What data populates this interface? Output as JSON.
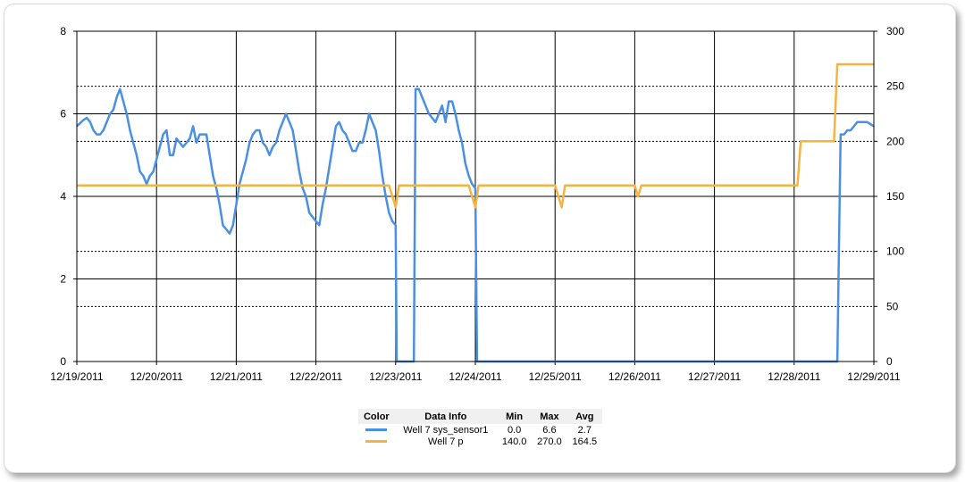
{
  "chart_data": {
    "type": "line",
    "title": "",
    "xlabel": "",
    "ylabel": "",
    "x_range": [
      "2011-12-19",
      "2011-12-29"
    ],
    "x_ticks": [
      "12/19/2011",
      "12/20/2011",
      "12/21/2011",
      "12/22/2011",
      "12/23/2011",
      "12/24/2011",
      "12/25/2011",
      "12/26/2011",
      "12/27/2011",
      "12/28/2011",
      "12/29/2011"
    ],
    "y_left": {
      "range": [
        0,
        8
      ],
      "ticks": [
        "0",
        "2",
        "4",
        "6",
        "8"
      ]
    },
    "y_right": {
      "range": [
        0,
        300
      ],
      "ticks": [
        "0",
        "50",
        "100",
        "150",
        "200",
        "250",
        "300"
      ]
    },
    "grid": true,
    "series": [
      {
        "name": "Well 7 sys_sensor1",
        "axis": "left",
        "color": "#4a90e2",
        "points": [
          [
            "2011-12-19 00:00",
            5.7
          ],
          [
            "2011-12-19 02:00",
            5.85
          ],
          [
            "2011-12-19 03:00",
            5.9
          ],
          [
            "2011-12-19 04:00",
            5.8
          ],
          [
            "2011-12-19 05:00",
            5.6
          ],
          [
            "2011-12-19 06:00",
            5.5
          ],
          [
            "2011-12-19 07:00",
            5.5
          ],
          [
            "2011-12-19 08:00",
            5.6
          ],
          [
            "2011-12-19 09:00",
            5.8
          ],
          [
            "2011-12-19 10:00",
            6.0
          ],
          [
            "2011-12-19 11:00",
            6.1
          ],
          [
            "2011-12-19 12:00",
            6.4
          ],
          [
            "2011-12-19 13:00",
            6.6
          ],
          [
            "2011-12-19 14:00",
            6.3
          ],
          [
            "2011-12-19 15:00",
            6.0
          ],
          [
            "2011-12-19 16:00",
            5.6
          ],
          [
            "2011-12-19 17:00",
            5.3
          ],
          [
            "2011-12-19 18:00",
            5.0
          ],
          [
            "2011-12-19 19:00",
            4.6
          ],
          [
            "2011-12-19 20:00",
            4.5
          ],
          [
            "2011-12-19 21:00",
            4.3
          ],
          [
            "2011-12-19 22:00",
            4.5
          ],
          [
            "2011-12-19 23:00",
            4.6
          ],
          [
            "2011-12-20 00:00",
            4.9
          ],
          [
            "2011-12-20 01:00",
            5.2
          ],
          [
            "2011-12-20 02:00",
            5.5
          ],
          [
            "2011-12-20 03:00",
            5.6
          ],
          [
            "2011-12-20 04:00",
            5.0
          ],
          [
            "2011-12-20 05:00",
            5.0
          ],
          [
            "2011-12-20 06:00",
            5.4
          ],
          [
            "2011-12-20 07:00",
            5.3
          ],
          [
            "2011-12-20 08:00",
            5.2
          ],
          [
            "2011-12-20 09:00",
            5.3
          ],
          [
            "2011-12-20 10:00",
            5.4
          ],
          [
            "2011-12-20 11:00",
            5.7
          ],
          [
            "2011-12-20 12:00",
            5.3
          ],
          [
            "2011-12-20 13:00",
            5.5
          ],
          [
            "2011-12-20 14:00",
            5.5
          ],
          [
            "2011-12-20 15:00",
            5.5
          ],
          [
            "2011-12-20 16:00",
            5.0
          ],
          [
            "2011-12-20 17:00",
            4.5
          ],
          [
            "2011-12-20 18:00",
            4.2
          ],
          [
            "2011-12-20 19:00",
            3.8
          ],
          [
            "2011-12-20 20:00",
            3.3
          ],
          [
            "2011-12-20 21:00",
            3.2
          ],
          [
            "2011-12-20 22:00",
            3.1
          ],
          [
            "2011-12-20 23:00",
            3.3
          ],
          [
            "2011-12-21 00:00",
            3.8
          ],
          [
            "2011-12-21 01:00",
            4.3
          ],
          [
            "2011-12-21 02:00",
            4.6
          ],
          [
            "2011-12-21 03:00",
            4.9
          ],
          [
            "2011-12-21 04:00",
            5.3
          ],
          [
            "2011-12-21 05:00",
            5.5
          ],
          [
            "2011-12-21 06:00",
            5.6
          ],
          [
            "2011-12-21 07:00",
            5.6
          ],
          [
            "2011-12-21 08:00",
            5.3
          ],
          [
            "2011-12-21 09:00",
            5.2
          ],
          [
            "2011-12-21 10:00",
            5.0
          ],
          [
            "2011-12-21 11:00",
            5.2
          ],
          [
            "2011-12-21 12:00",
            5.3
          ],
          [
            "2011-12-21 13:00",
            5.6
          ],
          [
            "2011-12-21 14:00",
            5.8
          ],
          [
            "2011-12-21 15:00",
            6.0
          ],
          [
            "2011-12-21 16:00",
            5.8
          ],
          [
            "2011-12-21 17:00",
            5.6
          ],
          [
            "2011-12-21 18:00",
            5.1
          ],
          [
            "2011-12-21 19:00",
            4.6
          ],
          [
            "2011-12-21 20:00",
            4.2
          ],
          [
            "2011-12-21 21:00",
            4.0
          ],
          [
            "2011-12-21 22:00",
            3.6
          ],
          [
            "2011-12-21 23:00",
            3.5
          ],
          [
            "2011-12-22 00:00",
            3.4
          ],
          [
            "2011-12-22 01:00",
            3.3
          ],
          [
            "2011-12-22 02:00",
            3.8
          ],
          [
            "2011-12-22 03:00",
            4.2
          ],
          [
            "2011-12-22 04:00",
            4.7
          ],
          [
            "2011-12-22 05:00",
            5.2
          ],
          [
            "2011-12-22 06:00",
            5.7
          ],
          [
            "2011-12-22 07:00",
            5.8
          ],
          [
            "2011-12-22 08:00",
            5.6
          ],
          [
            "2011-12-22 09:00",
            5.5
          ],
          [
            "2011-12-22 10:00",
            5.3
          ],
          [
            "2011-12-22 11:00",
            5.1
          ],
          [
            "2011-12-22 12:00",
            5.1
          ],
          [
            "2011-12-22 13:00",
            5.3
          ],
          [
            "2011-12-22 14:00",
            5.3
          ],
          [
            "2011-12-22 15:00",
            5.6
          ],
          [
            "2011-12-22 16:00",
            6.0
          ],
          [
            "2011-12-22 17:00",
            5.8
          ],
          [
            "2011-12-22 18:00",
            5.6
          ],
          [
            "2011-12-22 19:00",
            5.1
          ],
          [
            "2011-12-22 20:00",
            4.5
          ],
          [
            "2011-12-22 21:00",
            4.0
          ],
          [
            "2011-12-22 22:00",
            3.6
          ],
          [
            "2011-12-22 23:00",
            3.4
          ],
          [
            "2011-12-23 00:00",
            3.3
          ],
          [
            "2011-12-23 00:20",
            0.0
          ],
          [
            "2011-12-23 05:30",
            0.0
          ],
          [
            "2011-12-23 06:00",
            6.6
          ],
          [
            "2011-12-23 07:00",
            6.6
          ],
          [
            "2011-12-23 08:00",
            6.4
          ],
          [
            "2011-12-23 09:00",
            6.2
          ],
          [
            "2011-12-23 10:00",
            6.0
          ],
          [
            "2011-12-23 11:00",
            5.9
          ],
          [
            "2011-12-23 12:00",
            5.8
          ],
          [
            "2011-12-23 13:00",
            6.0
          ],
          [
            "2011-12-23 14:00",
            6.2
          ],
          [
            "2011-12-23 15:00",
            5.8
          ],
          [
            "2011-12-23 16:00",
            6.3
          ],
          [
            "2011-12-23 17:00",
            6.3
          ],
          [
            "2011-12-23 18:00",
            6.0
          ],
          [
            "2011-12-23 19:00",
            5.6
          ],
          [
            "2011-12-23 20:00",
            5.3
          ],
          [
            "2011-12-23 21:00",
            4.8
          ],
          [
            "2011-12-23 22:00",
            4.5
          ],
          [
            "2011-12-23 23:00",
            4.3
          ],
          [
            "2011-12-24 00:00",
            4.2
          ],
          [
            "2011-12-24 00:30",
            0.0
          ],
          [
            "2011-12-28 12:00",
            0.0
          ],
          [
            "2011-12-28 13:00",
            0.0
          ],
          [
            "2011-12-28 14:00",
            5.5
          ],
          [
            "2011-12-28 15:00",
            5.5
          ],
          [
            "2011-12-28 16:00",
            5.6
          ],
          [
            "2011-12-28 17:00",
            5.6
          ],
          [
            "2011-12-28 18:00",
            5.7
          ],
          [
            "2011-12-28 19:00",
            5.8
          ],
          [
            "2011-12-28 20:00",
            5.8
          ],
          [
            "2011-12-28 21:00",
            5.8
          ],
          [
            "2011-12-28 22:00",
            5.8
          ],
          [
            "2011-12-29 00:00",
            5.7
          ]
        ]
      },
      {
        "name": "Well 7 p",
        "axis": "right",
        "color": "#f5b342",
        "points": [
          [
            "2011-12-19 00:00",
            160
          ],
          [
            "2011-12-22 22:00",
            160
          ],
          [
            "2011-12-23 00:00",
            140
          ],
          [
            "2011-12-23 01:00",
            160
          ],
          [
            "2011-12-23 22:00",
            160
          ],
          [
            "2011-12-24 00:00",
            140
          ],
          [
            "2011-12-24 01:00",
            160
          ],
          [
            "2011-12-25 00:00",
            160
          ],
          [
            "2011-12-25 02:00",
            140
          ],
          [
            "2011-12-25 03:00",
            160
          ],
          [
            "2011-12-26 00:00",
            160
          ],
          [
            "2011-12-26 01:00",
            150
          ],
          [
            "2011-12-26 02:00",
            160
          ],
          [
            "2011-12-28 00:00",
            160
          ],
          [
            "2011-12-28 01:00",
            160
          ],
          [
            "2011-12-28 02:00",
            200
          ],
          [
            "2011-12-28 12:00",
            200
          ],
          [
            "2011-12-28 13:00",
            270
          ],
          [
            "2011-12-29 00:00",
            270
          ]
        ]
      }
    ],
    "legend": {
      "placement": "bottom-center",
      "headers": [
        "Color",
        "Data Info",
        "Min",
        "Max",
        "Avg"
      ],
      "rows": [
        {
          "name": "Well 7 sys_sensor1",
          "min": "0.0",
          "max": "6.6",
          "avg": "2.7",
          "color": "#4a90e2"
        },
        {
          "name": "Well 7 p",
          "min": "140.0",
          "max": "270.0",
          "avg": "164.5",
          "color": "#f5b342"
        }
      ]
    }
  }
}
